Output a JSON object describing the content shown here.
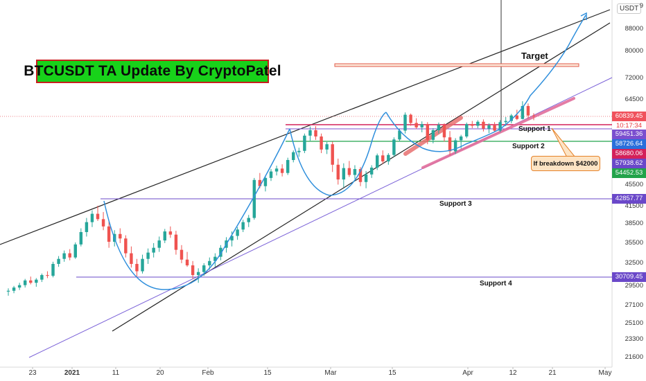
{
  "title": "BTCUSDT TA Update By CryptoPatel",
  "currency": "USDT",
  "target_label": "Target",
  "callout": "If breakdown $42000",
  "countdown": "10:17:34",
  "chart_data": {
    "type": "candlestick",
    "symbol": "BTCUSDT",
    "price_axis": {
      "min": 21000,
      "max": 92000,
      "ticks": [
        21600,
        23300,
        25100,
        27100,
        29500,
        32500,
        35500,
        38500,
        41500,
        45500,
        64500,
        72000,
        80000,
        88000
      ]
    },
    "top_partial_tick": "9",
    "x_ticks": [
      {
        "label": "23",
        "bold": false
      },
      {
        "label": "2021",
        "bold": true
      },
      {
        "label": "11",
        "bold": false
      },
      {
        "label": "20",
        "bold": false
      },
      {
        "label": "Feb",
        "bold": false
      },
      {
        "label": "15",
        "bold": false
      },
      {
        "label": "Mar",
        "bold": false
      },
      {
        "label": "15",
        "bold": false
      },
      {
        "label": "Apr",
        "bold": false
      },
      {
        "label": "12",
        "bold": false
      },
      {
        "label": "21",
        "bold": false
      },
      {
        "label": "May",
        "bold": false
      }
    ],
    "price_tags": [
      {
        "value": "60839.45",
        "color": "#f0525c"
      },
      {
        "value": "59451.36",
        "color": "#7b4fcf"
      },
      {
        "value": "58726.64",
        "color": "#2a6fdb"
      },
      {
        "value": "58680.06",
        "color": "#d4215a"
      },
      {
        "value": "57938.62",
        "color": "#6a48c9"
      },
      {
        "value": "54452.53",
        "color": "#22a34a"
      },
      {
        "value": "42857.77",
        "color": "#6a48c9"
      },
      {
        "value": "30709.45",
        "color": "#6a48c9"
      }
    ],
    "levels": [
      {
        "label": "Support 1",
        "price": 59451.36
      },
      {
        "label": "Support 2",
        "price": 54452.53
      },
      {
        "label": "Support 3",
        "price": 42857.77
      },
      {
        "label": "Support 4",
        "price": 30709.45
      }
    ],
    "target_zone": 76000,
    "breakdown_level": 42000,
    "candles": [
      [
        28900,
        29300,
        28400,
        29000
      ],
      [
        29000,
        29600,
        28700,
        29400
      ],
      [
        29400,
        30000,
        29100,
        29700
      ],
      [
        29700,
        30500,
        29400,
        30300
      ],
      [
        30300,
        30800,
        29800,
        30000
      ],
      [
        30000,
        30600,
        29500,
        30400
      ],
      [
        30400,
        31200,
        30100,
        31000
      ],
      [
        31000,
        31500,
        30600,
        30900
      ],
      [
        30900,
        32800,
        30700,
        32500
      ],
      [
        32500,
        33600,
        32100,
        33200
      ],
      [
        33200,
        34400,
        32800,
        34000
      ],
      [
        34000,
        34600,
        33000,
        33400
      ],
      [
        33400,
        35600,
        33200,
        35300
      ],
      [
        35300,
        37800,
        35000,
        37200
      ],
      [
        37200,
        39500,
        36500,
        38800
      ],
      [
        38800,
        40800,
        38000,
        40200
      ],
      [
        40200,
        41600,
        39000,
        39300
      ],
      [
        39300,
        40500,
        37500,
        38100
      ],
      [
        38100,
        38900,
        34800,
        35700
      ],
      [
        35700,
        37500,
        35000,
        36900
      ],
      [
        36900,
        37800,
        35500,
        36200
      ],
      [
        36200,
        36700,
        33400,
        34000
      ],
      [
        34000,
        35000,
        32000,
        32500
      ],
      [
        32500,
        33200,
        30800,
        31500
      ],
      [
        31500,
        33800,
        31200,
        33200
      ],
      [
        33200,
        34700,
        32500,
        34100
      ],
      [
        34100,
        35500,
        33400,
        34800
      ],
      [
        34800,
        36500,
        34200,
        35900
      ],
      [
        35900,
        37700,
        35500,
        37300
      ],
      [
        37300,
        38100,
        36300,
        36800
      ],
      [
        36800,
        37400,
        33800,
        34500
      ],
      [
        34500,
        35200,
        32600,
        33100
      ],
      [
        33100,
        34200,
        32100,
        32300
      ],
      [
        32300,
        32900,
        30500,
        31000
      ],
      [
        31000,
        31900,
        30000,
        31400
      ],
      [
        31400,
        32600,
        30900,
        32300
      ],
      [
        32300,
        33400,
        31700,
        32900
      ],
      [
        32900,
        34000,
        32100,
        33500
      ],
      [
        33500,
        35200,
        33000,
        34800
      ],
      [
        34800,
        36400,
        34100,
        35900
      ],
      [
        35900,
        37300,
        35000,
        36600
      ],
      [
        36600,
        38000,
        36000,
        37600
      ],
      [
        37600,
        39200,
        37200,
        38800
      ],
      [
        38800,
        40000,
        38000,
        39500
      ],
      [
        39500,
        46800,
        39200,
        46400
      ],
      [
        46400,
        47800,
        44800,
        45200
      ],
      [
        45200,
        47200,
        44200,
        46800
      ],
      [
        46800,
        48600,
        46200,
        48100
      ],
      [
        48100,
        49300,
        47300,
        48700
      ],
      [
        48700,
        49600,
        47100,
        47800
      ],
      [
        47800,
        51000,
        47400,
        50500
      ],
      [
        50500,
        52600,
        50000,
        52200
      ],
      [
        52200,
        53200,
        51200,
        52500
      ],
      [
        52500,
        56500,
        52000,
        56000
      ],
      [
        56000,
        58200,
        54800,
        57300
      ],
      [
        57300,
        58300,
        55000,
        55800
      ],
      [
        55800,
        56500,
        52000,
        52800
      ],
      [
        52800,
        54500,
        51800,
        54000
      ],
      [
        54000,
        54600,
        48000,
        49500
      ],
      [
        49500,
        50800,
        45500,
        46500
      ],
      [
        46500,
        49800,
        45000,
        48800
      ],
      [
        48800,
        50300,
        47000,
        47400
      ],
      [
        47400,
        49400,
        46600,
        48600
      ],
      [
        48600,
        49000,
        45200,
        46000
      ],
      [
        46000,
        48200,
        44800,
        47500
      ],
      [
        47500,
        49400,
        46800,
        48900
      ],
      [
        48900,
        51900,
        48400,
        51500
      ],
      [
        51500,
        52600,
        49700,
        50200
      ],
      [
        50200,
        52000,
        49500,
        51600
      ],
      [
        51600,
        55600,
        51200,
        55100
      ],
      [
        55100,
        57600,
        54600,
        57200
      ],
      [
        57200,
        61800,
        56500,
        61200
      ],
      [
        61200,
        61500,
        58400,
        59100
      ],
      [
        59100,
        60300,
        57600,
        58000
      ],
      [
        58000,
        59500,
        56800,
        58800
      ],
      [
        58800,
        59300,
        54000,
        55000
      ],
      [
        55000,
        57800,
        54200,
        57300
      ],
      [
        57300,
        59200,
        56500,
        58600
      ],
      [
        58600,
        59000,
        54600,
        55600
      ],
      [
        55600,
        57100,
        51500,
        52400
      ],
      [
        52400,
        55400,
        51800,
        54900
      ],
      [
        54900,
        56200,
        53000,
        55800
      ],
      [
        55800,
        59200,
        55400,
        58800
      ],
      [
        58800,
        59600,
        57800,
        58400
      ],
      [
        58400,
        59800,
        57800,
        59400
      ],
      [
        59400,
        60000,
        57000,
        57700
      ],
      [
        57700,
        59000,
        56600,
        58500
      ],
      [
        58500,
        59300,
        56800,
        57200
      ],
      [
        57200,
        59800,
        56800,
        59300
      ],
      [
        59300,
        60600,
        58300,
        59600
      ],
      [
        59600,
        61400,
        59000,
        61000
      ],
      [
        61000,
        62500,
        59800,
        60100
      ],
      [
        60100,
        64800,
        60000,
        63500
      ],
      [
        63500,
        64200,
        60200,
        61000
      ],
      [
        61000,
        61600,
        59800,
        60839
      ]
    ]
  }
}
